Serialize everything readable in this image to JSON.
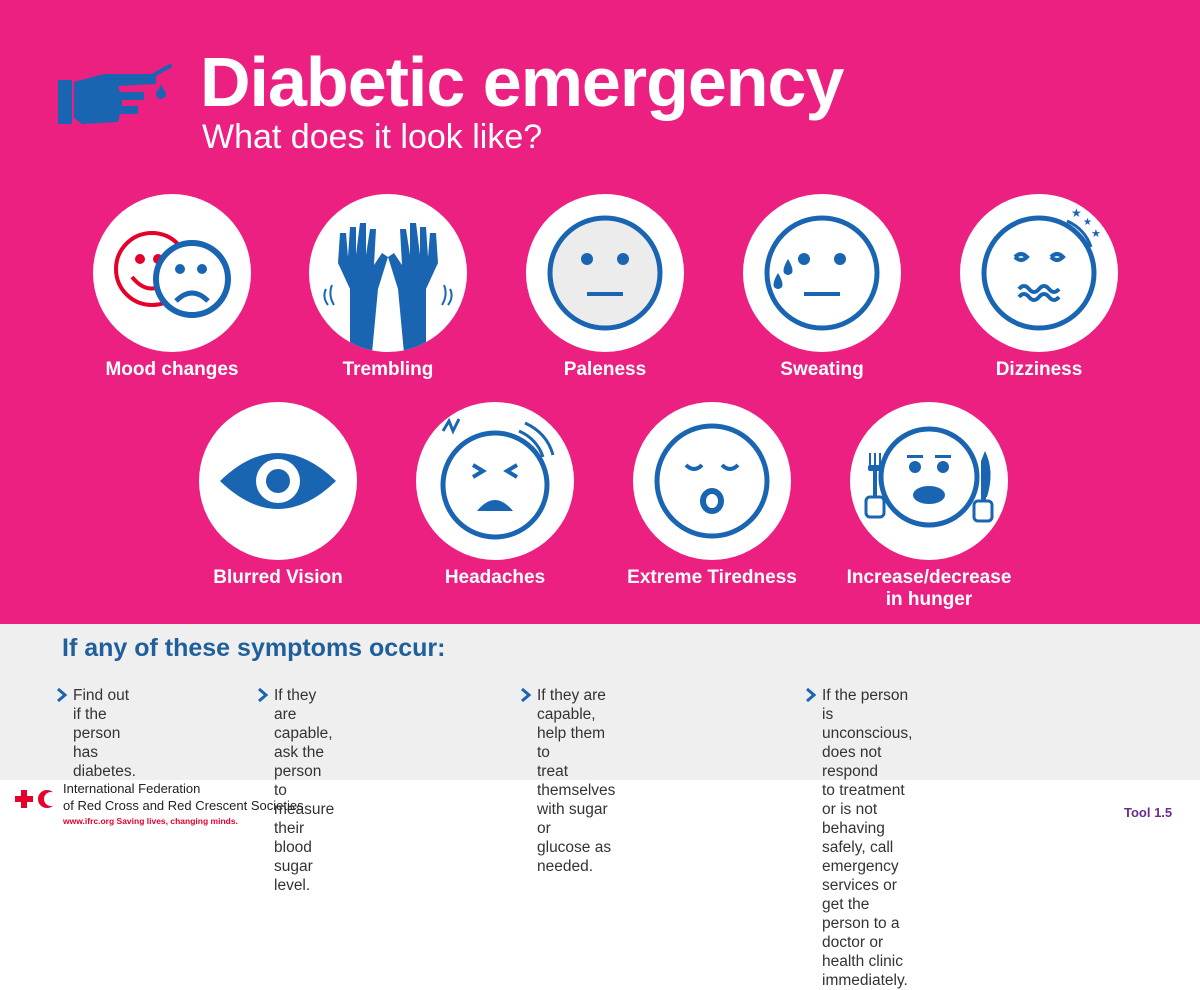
{
  "header": {
    "title": "Diabetic emergency",
    "subtitle": "What does it look like?"
  },
  "symptoms": [
    {
      "label": "Mood changes",
      "icon": "mood-faces-icon"
    },
    {
      "label": "Trembling",
      "icon": "trembling-hands-icon"
    },
    {
      "label": "Paleness",
      "icon": "pale-face-icon"
    },
    {
      "label": "Sweating",
      "icon": "sweating-face-icon"
    },
    {
      "label": "Dizziness",
      "icon": "dizzy-face-icon"
    },
    {
      "label": "Blurred Vision",
      "icon": "eye-icon"
    },
    {
      "label": "Headaches",
      "icon": "headache-face-icon"
    },
    {
      "label": "Extreme Tiredness",
      "icon": "tired-face-icon"
    },
    {
      "label": "Increase/decrease\nin hunger",
      "icon": "hunger-face-icon"
    }
  ],
  "actions": {
    "heading": "If any of these symptoms occur:",
    "steps": [
      "Find out if the person\nhas diabetes.",
      "If they are capable, ask the\nperson to measure their blood\nsugar level.",
      "If they are capable, help them to\ntreat themselves with sugar or\nglucose as needed.",
      "If the person is unconscious, does not respond\nto treatment or is not behaving safely, call\nemergency services or get the person to a\ndoctor or health clinic immediately."
    ]
  },
  "footer": {
    "org_line1": "International Federation",
    "org_line2": "of Red Cross and Red Crescent Societies",
    "tagline": "www.ifrc.org Saving lives, changing minds.",
    "tool": "Tool 1.5"
  },
  "colors": {
    "background": "#eb2080",
    "icon_blue": "#1a65b2",
    "heading_blue": "#1f5f9c",
    "red": "#e4002b",
    "panel_grey": "#efefef",
    "tool_purple": "#6a2e8f"
  }
}
